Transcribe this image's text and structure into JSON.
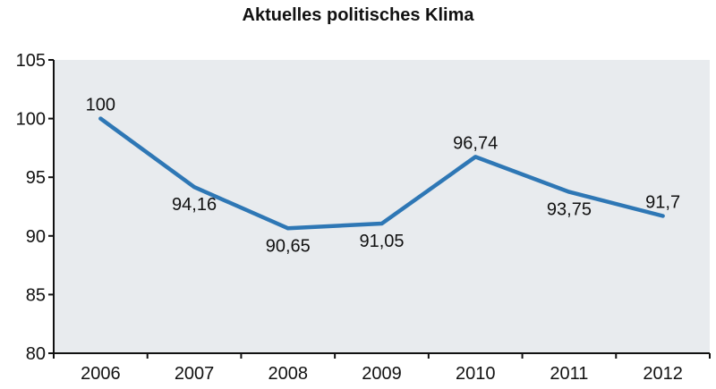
{
  "chart_data": {
    "type": "line",
    "title": "Aktuelles politisches Klima",
    "xlabel": "",
    "ylabel": "",
    "categories": [
      "2006",
      "2007",
      "2008",
      "2009",
      "2010",
      "2011",
      "2012"
    ],
    "series": [
      {
        "values": [
          100,
          94.16,
          90.65,
          91.05,
          96.74,
          93.75,
          91.7
        ],
        "labels": [
          "100",
          "94,16",
          "90,65",
          "91,05",
          "96,74",
          "93,75",
          "91,7"
        ],
        "label_position": [
          "above",
          "below",
          "below",
          "below",
          "above",
          "below",
          "above"
        ],
        "color": "#2e77b5"
      }
    ],
    "ylim": [
      80,
      105
    ],
    "yticks": [
      80,
      85,
      90,
      95,
      100,
      105
    ],
    "grid": false,
    "legend": "none",
    "plot_background": "#e8ebee"
  }
}
